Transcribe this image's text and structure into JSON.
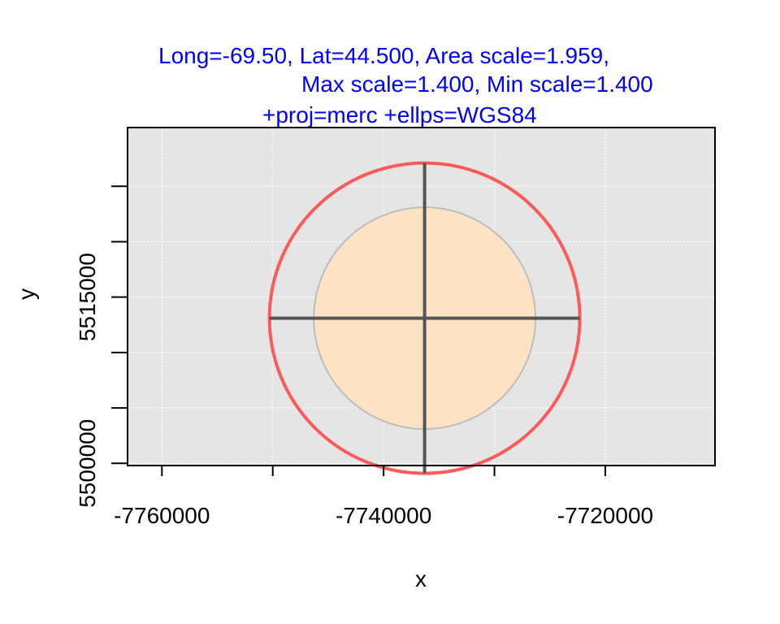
{
  "title": {
    "line1": "Long=-69.50, Lat=44.500, Area scale=1.959,",
    "line2": "Max scale=1.400, Min scale=1.400",
    "line3": "+proj=merc +ellps=WGS84"
  },
  "chart_data": {
    "type": "tissot-indicatrix",
    "xlabel": "x",
    "ylabel": "y",
    "xlim": [
      -7763100,
      -7710100
    ],
    "ylim": [
      5499800,
      5530300
    ],
    "x_ticks": [
      -7760000,
      -7750000,
      -7740000,
      -7730000,
      -7720000
    ],
    "x_tick_labels": [
      "-7760000",
      "",
      "-7740000",
      "",
      "-7720000"
    ],
    "y_ticks": [
      5500000,
      5505000,
      5510000,
      5515000,
      5520000,
      5525000
    ],
    "y_tick_labels": [
      "5500000",
      "",
      "",
      "5515000",
      "",
      ""
    ],
    "center": {
      "x": -7736300,
      "y": 5513100
    },
    "reference_circle_radius": 14000,
    "indicatrix_radius": 10000,
    "axes_half_length": 14000,
    "grid": true,
    "colors": {
      "panel": "#e5e5e5",
      "grid": "#ffffff",
      "reference_circle": "#ff5a5a",
      "indicatrix_fill": "#fde3c4",
      "indicatrix_stroke": "#bdbdbd",
      "axis_lines": "#555555",
      "title": "#0000ff"
    }
  }
}
